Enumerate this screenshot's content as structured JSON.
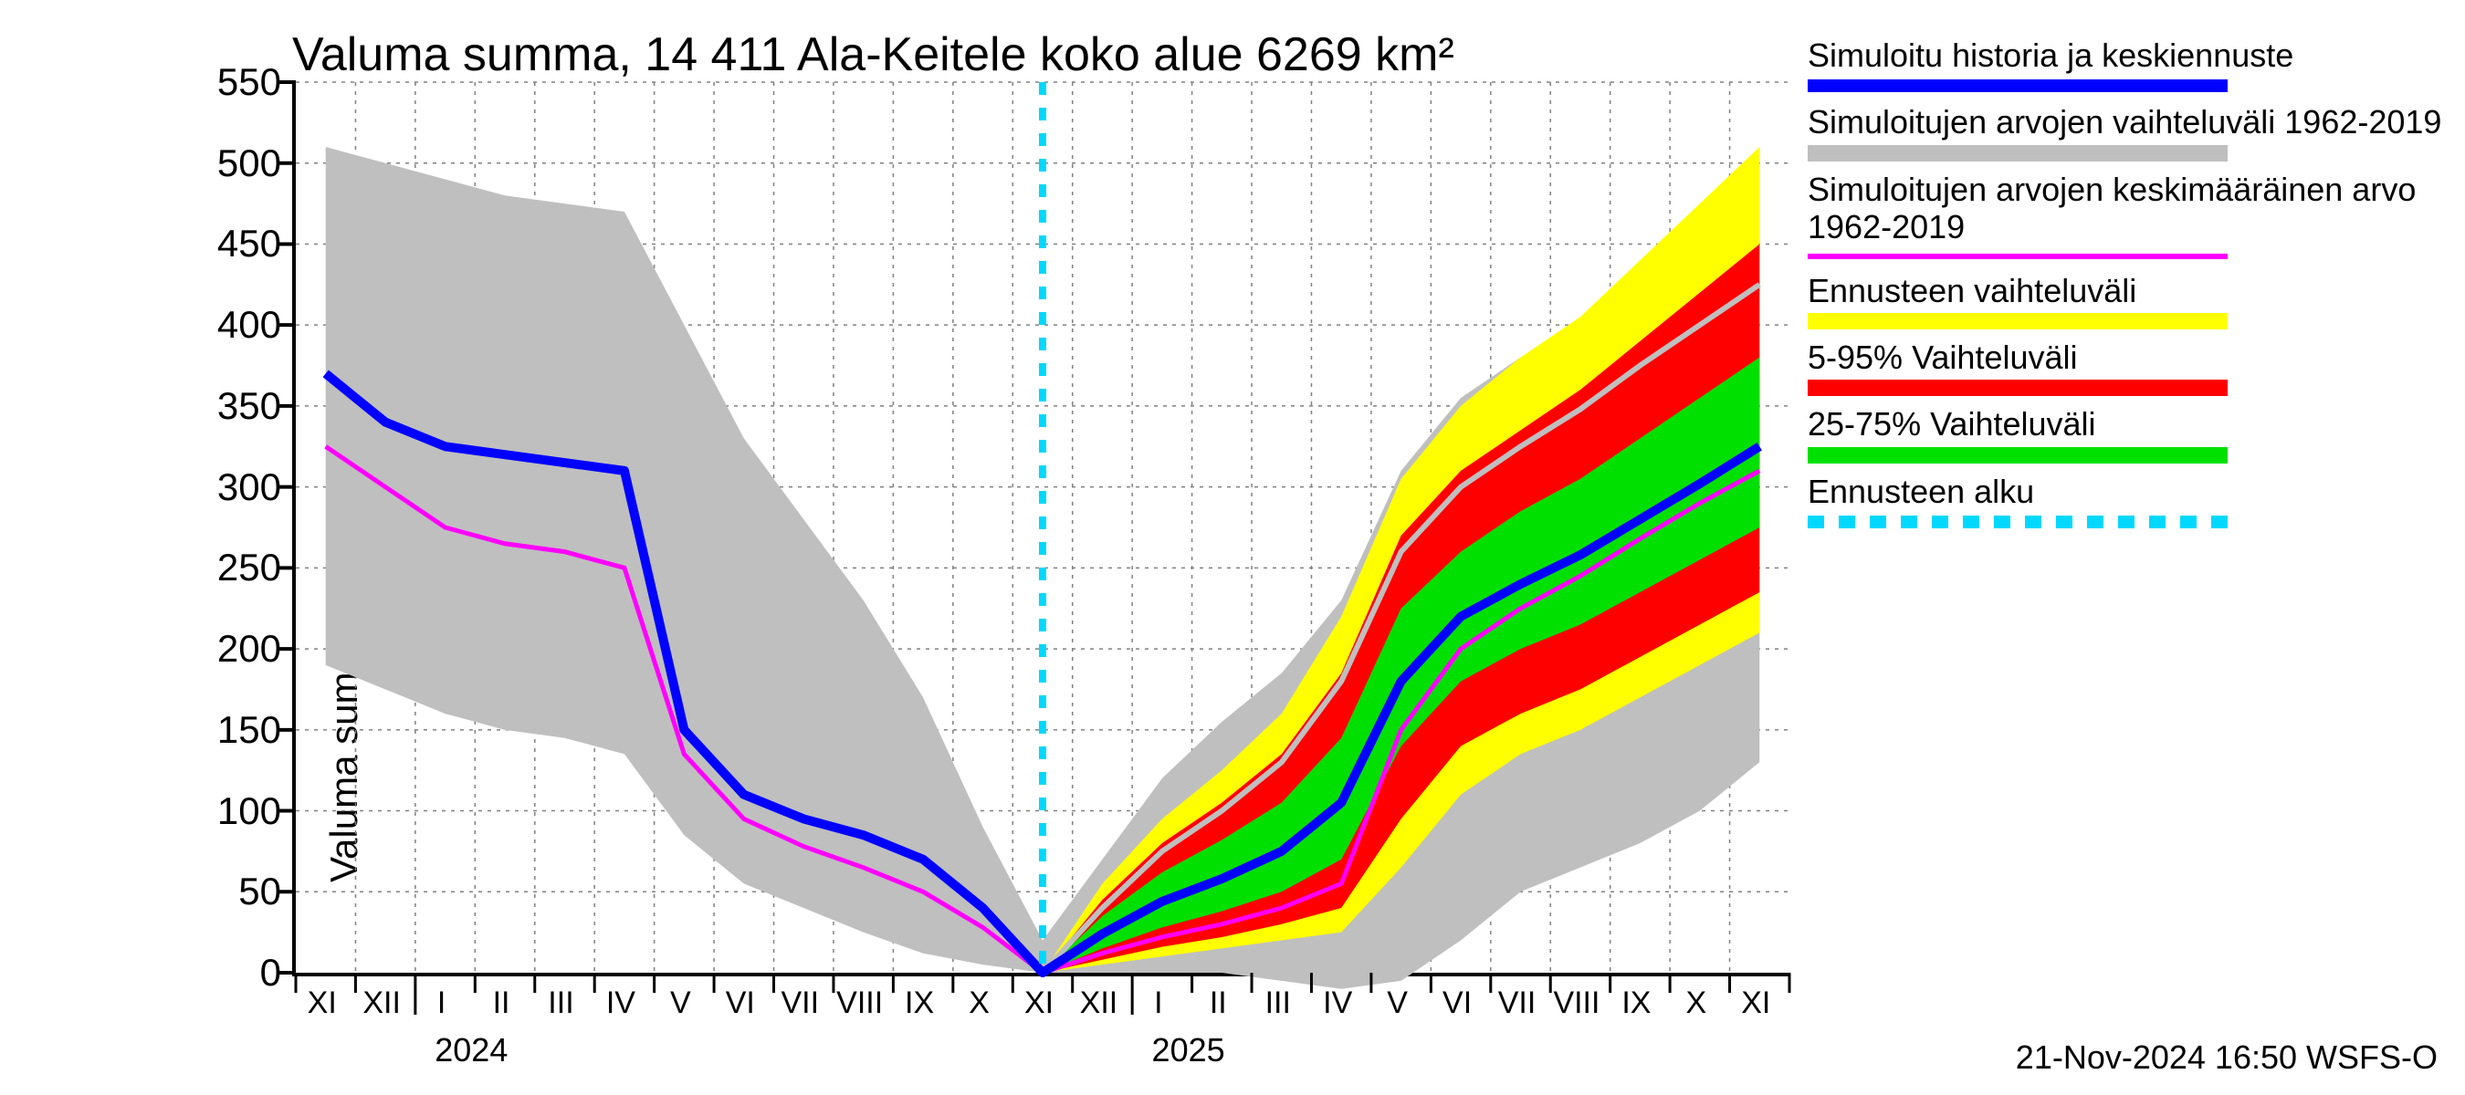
{
  "title": "Valuma summa, 14 411 Ala-Keitele koko alue 6269 km²",
  "y_axis_label": "Valuma summa / Cumulative runoff    mm",
  "timestamp": "21-Nov-2024 16:50 WSFS-O",
  "chart": {
    "type": "line-area",
    "background_color": "#ffffff",
    "grid_color": "#808080",
    "grid_dash": "4 6",
    "ylim": [
      0,
      550
    ],
    "ytick_step": 50,
    "yticks": [
      0,
      50,
      100,
      150,
      200,
      250,
      300,
      350,
      400,
      450,
      500,
      550
    ],
    "y_label_fontsize": 42,
    "title_fontsize": 52,
    "tick_fontsize": 42,
    "x_months": [
      "XI",
      "XII",
      "I",
      "II",
      "III",
      "IV",
      "V",
      "VI",
      "VII",
      "VIII",
      "IX",
      "X",
      "XI",
      "XII",
      "I",
      "II",
      "III",
      "IV",
      "V",
      "VI",
      "VII",
      "VIII",
      "IX",
      "X",
      "XI"
    ],
    "x_years": [
      {
        "label": "2024",
        "at_index": 2.5
      },
      {
        "label": "2025",
        "at_index": 14.5
      }
    ],
    "forecast_start_index": 12,
    "series": {
      "grey_band": {
        "color": "#bfbfbf",
        "upper": [
          510,
          500,
          490,
          480,
          475,
          470,
          400,
          330,
          280,
          230,
          170,
          90,
          20,
          70,
          120,
          155,
          185,
          230,
          310,
          355,
          380,
          400,
          430,
          460,
          500
        ],
        "lower": [
          190,
          175,
          160,
          150,
          145,
          135,
          85,
          55,
          40,
          25,
          12,
          5,
          0,
          0,
          0,
          0,
          -5,
          -10,
          -5,
          20,
          50,
          65,
          80,
          100,
          130
        ]
      },
      "yellow_band": {
        "color": "#ffff00",
        "upper": [
          null,
          null,
          null,
          null,
          null,
          null,
          null,
          null,
          null,
          null,
          null,
          null,
          0,
          55,
          95,
          125,
          160,
          220,
          305,
          350,
          380,
          405,
          440,
          475,
          510
        ],
        "lower": [
          null,
          null,
          null,
          null,
          null,
          null,
          null,
          null,
          null,
          null,
          null,
          null,
          0,
          5,
          10,
          15,
          20,
          25,
          65,
          110,
          135,
          150,
          170,
          190,
          210
        ]
      },
      "red_band": {
        "color": "#ff0000",
        "upper": [
          null,
          null,
          null,
          null,
          null,
          null,
          null,
          null,
          null,
          null,
          null,
          null,
          0,
          45,
          80,
          105,
          135,
          185,
          270,
          310,
          335,
          360,
          390,
          420,
          450
        ],
        "lower": [
          null,
          null,
          null,
          null,
          null,
          null,
          null,
          null,
          null,
          null,
          null,
          null,
          0,
          8,
          16,
          22,
          30,
          40,
          95,
          140,
          160,
          175,
          195,
          215,
          235
        ]
      },
      "green_band": {
        "color": "#00e000",
        "upper": [
          null,
          null,
          null,
          null,
          null,
          null,
          null,
          null,
          null,
          null,
          null,
          null,
          0,
          35,
          62,
          82,
          105,
          145,
          225,
          260,
          285,
          305,
          330,
          355,
          380
        ],
        "lower": [
          null,
          null,
          null,
          null,
          null,
          null,
          null,
          null,
          null,
          null,
          null,
          null,
          0,
          15,
          28,
          38,
          50,
          70,
          140,
          180,
          200,
          215,
          235,
          255,
          275
        ]
      },
      "blue_line": {
        "color": "#0000ff",
        "width": 10,
        "values": [
          370,
          340,
          325,
          320,
          315,
          310,
          150,
          110,
          95,
          85,
          70,
          40,
          0,
          24,
          44,
          58,
          75,
          105,
          180,
          220,
          240,
          258,
          280,
          302,
          325
        ]
      },
      "magenta_line": {
        "color": "#ff00ff",
        "width": 5,
        "values": [
          325,
          300,
          275,
          265,
          260,
          250,
          135,
          95,
          78,
          65,
          50,
          28,
          0,
          12,
          22,
          30,
          40,
          55,
          150,
          200,
          225,
          245,
          268,
          290,
          310
        ]
      },
      "lightgrey_line": {
        "color": "#bfbfbf",
        "width": 6,
        "values": [
          null,
          null,
          null,
          null,
          null,
          null,
          null,
          null,
          null,
          null,
          null,
          null,
          0,
          40,
          75,
          100,
          130,
          180,
          260,
          300,
          325,
          348,
          375,
          400,
          425
        ]
      },
      "cyan_forecast_line": {
        "color": "#00d8ff",
        "width": 8,
        "dash": "14 14"
      }
    }
  },
  "legend": {
    "items": [
      {
        "label": "Simuloitu historia ja keskiennuste",
        "type": "thick-line",
        "color": "#0000ff"
      },
      {
        "label": "Simuloitujen arvojen vaihteluväli 1962-2019",
        "type": "swatch",
        "color": "#bfbfbf"
      },
      {
        "label": "Simuloitujen arvojen keskimääräinen arvo\n 1962-2019",
        "type": "line",
        "color": "#ff00ff"
      },
      {
        "label": "Ennusteen vaihteluväli",
        "type": "swatch",
        "color": "#ffff00"
      },
      {
        "label": "5-95% Vaihteluväli",
        "type": "swatch",
        "color": "#ff0000"
      },
      {
        "label": "25-75% Vaihteluväli",
        "type": "swatch",
        "color": "#00e000"
      },
      {
        "label": "Ennusteen alku",
        "type": "dashed-line",
        "color": "#00d8ff"
      }
    ]
  }
}
